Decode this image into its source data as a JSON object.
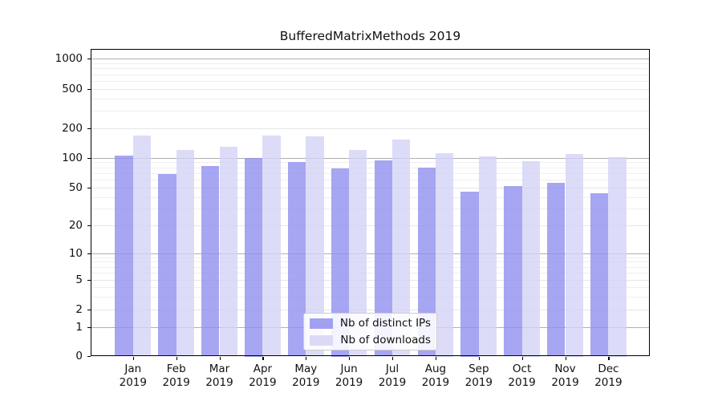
{
  "chart_data": {
    "type": "bar",
    "title": "BufferedMatrixMethods 2019",
    "year": "2019",
    "categories": [
      "Jan",
      "Feb",
      "Mar",
      "Apr",
      "May",
      "Jun",
      "Jul",
      "Aug",
      "Sep",
      "Oct",
      "Nov",
      "Dec"
    ],
    "series": [
      {
        "name": "Nb of distinct IPs",
        "color": "#9090ef",
        "values": [
          105,
          69,
          82,
          99,
          90,
          78,
          94,
          79,
          46,
          52,
          56,
          44
        ]
      },
      {
        "name": "Nb of downloads",
        "color": "#d3d3f6",
        "values": [
          170,
          120,
          130,
          169,
          165,
          120,
          153,
          112,
          103,
          93,
          110,
          101
        ]
      }
    ],
    "xlabel": "",
    "ylabel": "",
    "y_ticks": [
      0,
      1,
      2,
      5,
      10,
      20,
      50,
      100,
      200,
      500,
      1000
    ],
    "y_scale": "symlog",
    "ylim": [
      0,
      1350
    ],
    "grid": true,
    "legend_position": "lower-center"
  }
}
